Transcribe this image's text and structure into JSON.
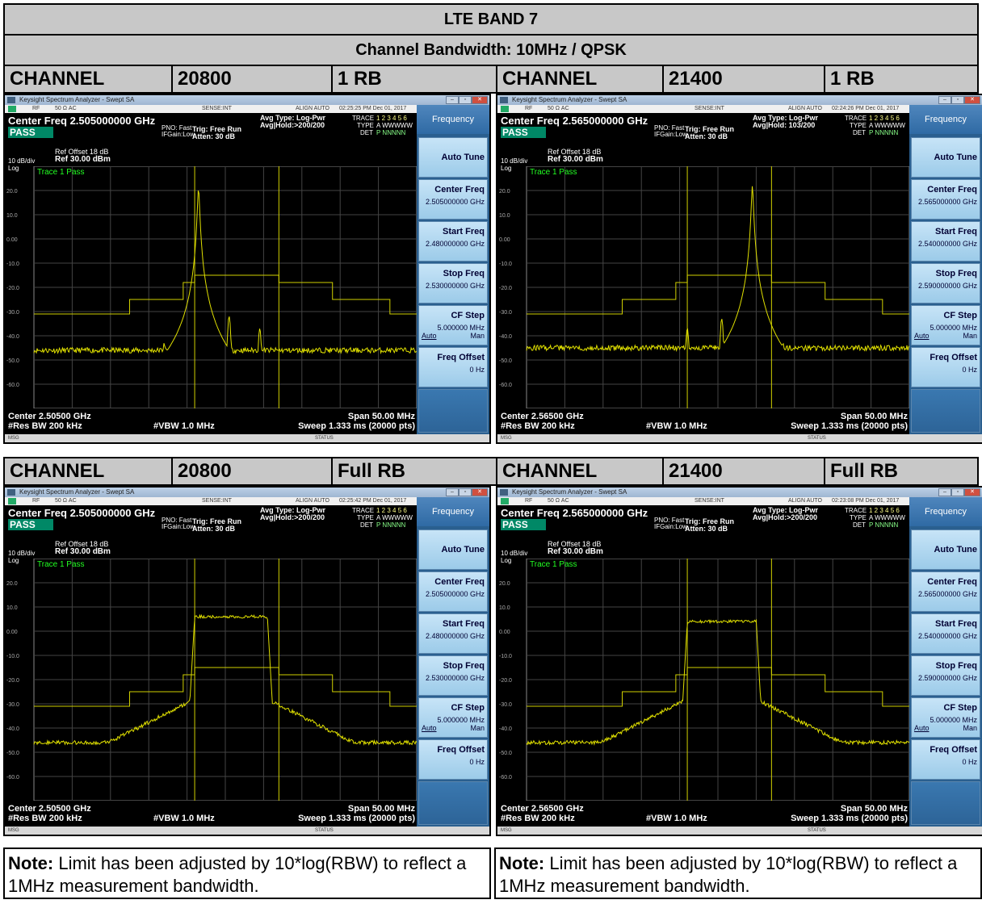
{
  "header": {
    "title": "LTE BAND 7",
    "subtitle": "Channel Bandwidth: 10MHz / QPSK"
  },
  "colors": {
    "trace": "#e0e000",
    "limit": "#d0d000",
    "grid": "#444444",
    "pass": "#008866",
    "header_bg": "#c8c8c8"
  },
  "rows": [
    {
      "left": {
        "label": "CHANNEL",
        "channel": "20800",
        "rb": "1 RB"
      },
      "right": {
        "label": "CHANNEL",
        "channel": "21400",
        "rb": "1 RB"
      }
    },
    {
      "left": {
        "label": "CHANNEL",
        "channel": "20800",
        "rb": "Full RB"
      },
      "right": {
        "label": "CHANNEL",
        "channel": "21400",
        "rb": "Full RB"
      }
    }
  ],
  "analyzer_common": {
    "app_title": "Keysight Spectrum Analyzer - Swept SA",
    "menu": [
      "RF",
      "50 Ω  AC",
      "SENSE:INT",
      "ALIGN AUTO"
    ],
    "pass": "PASS",
    "pno": "PNO: Fast",
    "ifgain": "IFGain:Low",
    "trig": "Trig: Free Run",
    "atten": "Atten: 30 dB",
    "avg_type": "Avg Type: Log-Pwr",
    "trace_lbl": "TRACE",
    "type_lbl": "TYPE",
    "det_lbl": "DET",
    "trace_nums": "1 2 3 4 5 6",
    "type_vals": "A WWWWW",
    "det_vals": "P NNNNN",
    "ref_offset": "Ref Offset 18 dB",
    "scale": "10 dB/div",
    "ref_level": "Ref 30.00 dBm",
    "log": "Log",
    "trace_pass": "Trace 1 Pass",
    "y_ticks": [
      "20.0",
      "10.0",
      "0.00",
      "-10.0",
      "-20.0",
      "-30.0",
      "-40.0",
      "-50.0",
      "-60.0"
    ],
    "res_bw": "#Res BW 200 kHz",
    "vbw": "#VBW 1.0 MHz",
    "span": "Span 50.00 MHz",
    "sweep": "Sweep  1.333 ms (20000 pts)",
    "msg": "MSG",
    "status": "STATUS",
    "side_header": "Frequency",
    "auto_tune": "Auto Tune",
    "center_freq_lbl": "Center Freq",
    "start_freq_lbl": "Start Freq",
    "stop_freq_lbl": "Stop Freq",
    "cf_step_lbl": "CF Step",
    "cf_step_val": "5.000000 MHz",
    "cf_auto": "Auto",
    "cf_man": "Man",
    "freq_offset_lbl": "Freq Offset",
    "freq_offset_val": "0 Hz"
  },
  "analyzers": [
    {
      "time": "02:25:25 PM Dec 01, 2017",
      "center_freq": "Center Freq 2.505000000 GHz",
      "avg_hold": "Avg|Hold:>200/200",
      "center": "Center 2.50500 GHz",
      "cf_val": "2.505000000 GHz",
      "start_val": "2.480000000 GHz",
      "stop_val": "2.530000000 GHz"
    },
    {
      "time": "02:24:26 PM Dec 01, 2017",
      "center_freq": "Center Freq 2.565000000 GHz",
      "avg_hold": "Avg|Hold: 103/200",
      "center": "Center 2.56500 GHz",
      "cf_val": "2.565000000 GHz",
      "start_val": "2.540000000 GHz",
      "stop_val": "2.590000000 GHz"
    },
    {
      "time": "02:25:42 PM Dec 01, 2017",
      "center_freq": "Center Freq 2.505000000 GHz",
      "avg_hold": "Avg|Hold:>200/200",
      "center": "Center 2.50500 GHz",
      "cf_val": "2.505000000 GHz",
      "start_val": "2.480000000 GHz",
      "stop_val": "2.530000000 GHz"
    },
    {
      "time": "02:23:08 PM Dec 01, 2017",
      "center_freq": "Center Freq 2.565000000 GHz",
      "avg_hold": "Avg|Hold:>200/200",
      "center": "Center 2.56500 GHz",
      "cf_val": "2.565000000 GHz",
      "start_val": "2.540000000 GHz",
      "stop_val": "2.590000000 GHz"
    }
  ],
  "traces": [
    {
      "kind": "1rb",
      "ylim": [
        -70,
        30
      ],
      "floor": -46,
      "peak_x": 0.43,
      "peak_db": 21,
      "spurs": [
        [
          0.34,
          -43
        ],
        [
          0.51,
          -32
        ],
        [
          0.59,
          -37
        ]
      ]
    },
    {
      "kind": "1rb",
      "ylim": [
        -70,
        30
      ],
      "floor": -45,
      "peak_x": 0.59,
      "peak_db": 22,
      "spurs": [
        [
          0.42,
          -37
        ],
        [
          0.51,
          -33
        ],
        [
          0.67,
          -43
        ]
      ]
    },
    {
      "kind": "full",
      "ylim": [
        -70,
        30
      ],
      "plateau_db": 6,
      "x0": 0.42,
      "x1": 0.61
    },
    {
      "kind": "full",
      "ylim": [
        -70,
        30
      ],
      "plateau_db": 4,
      "x0": 0.42,
      "x1": 0.6
    }
  ],
  "limit_mask": {
    "db": [
      -31,
      -25,
      -18,
      -15,
      -18,
      -25,
      -31
    ],
    "x_edges": [
      0.0,
      0.25,
      0.39,
      0.42,
      0.64,
      0.78,
      0.93,
      1.0
    ]
  },
  "notes": [
    {
      "bold": "Note:",
      "text": " Limit has been adjusted by 10*log(RBW) to reflect a 1MHz measurement bandwidth."
    },
    {
      "bold": "Note:",
      "text": " Limit has been adjusted by 10*log(RBW) to reflect a 1MHz measurement bandwidth."
    }
  ]
}
